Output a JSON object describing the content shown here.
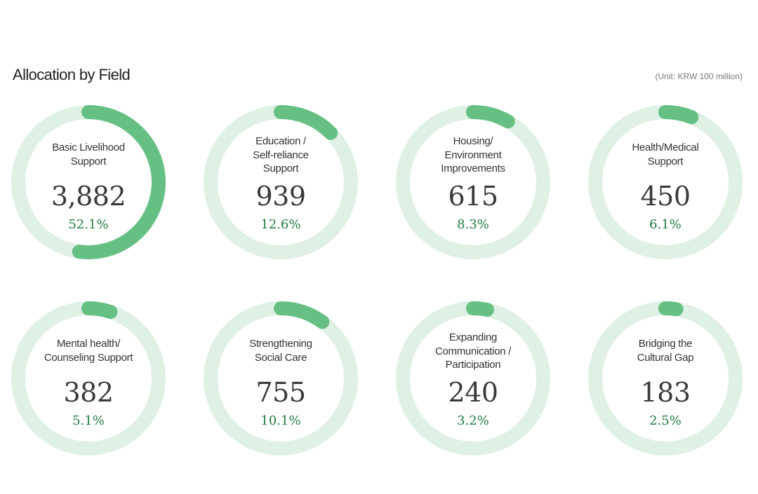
{
  "chart_data": {
    "type": "donut",
    "title": "Allocation by Field",
    "unit_note": "(Unit: KRW 100 million)",
    "items": [
      {
        "label": "Basic Livelihood\nSupport",
        "value": 3882,
        "display": "3,882",
        "percent": 52.1,
        "percent_label": "52.1%"
      },
      {
        "label": "Education /\nSelf-reliance\nSupport",
        "value": 939,
        "display": "939",
        "percent": 12.6,
        "percent_label": "12.6%"
      },
      {
        "label": "Housing/\nEnvironment\nImprovements",
        "value": 615,
        "display": "615",
        "percent": 8.3,
        "percent_label": "8.3%"
      },
      {
        "label": "Health/Medical\nSupport",
        "value": 450,
        "display": "450",
        "percent": 6.1,
        "percent_label": "6.1%"
      },
      {
        "label": "Mental health/\nCounseling Support",
        "value": 382,
        "display": "382",
        "percent": 5.1,
        "percent_label": "5.1%"
      },
      {
        "label": "Strengthening\nSocial Care",
        "value": 755,
        "display": "755",
        "percent": 10.1,
        "percent_label": "10.1%"
      },
      {
        "label": "Expanding\nCommunication /\nParticipation",
        "value": 240,
        "display": "240",
        "percent": 3.2,
        "percent_label": "3.2%"
      },
      {
        "label": "Bridging the\nCultural Gap",
        "value": 183,
        "display": "183",
        "percent": 2.5,
        "percent_label": "2.5%"
      }
    ],
    "colors": {
      "track": "#dff0e4",
      "progress": "#66c083"
    }
  }
}
